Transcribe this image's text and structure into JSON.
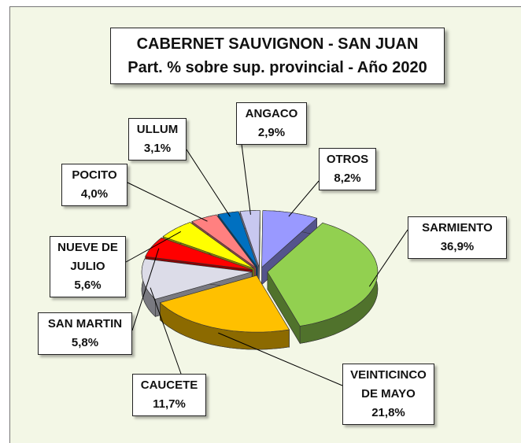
{
  "chart_data": {
    "type": "pie",
    "title": "CABERNET SAUVIGNON - SAN JUAN",
    "subtitle": "Part. % sobre sup. provincial  - Año 2020",
    "categories": [
      "SARMIENTO",
      "VEINTICINCO DE MAYO",
      "CAUCETE",
      "SAN MARTIN",
      "NUEVE DE JULIO",
      "POCITO",
      "ULLUM",
      "ANGACO",
      "OTROS"
    ],
    "values": [
      36.9,
      21.8,
      11.7,
      5.8,
      5.6,
      4.0,
      3.1,
      2.9,
      8.2
    ],
    "value_labels": [
      "36,9%",
      "21,8%",
      "11,7%",
      "5,8%",
      "5,6%",
      "4,0%",
      "3,1%",
      "2,9%",
      "8,2%"
    ],
    "colors": [
      "#92d050",
      "#ffc000",
      "#dcdce8",
      "#ff0000",
      "#ffff00",
      "#ff8080",
      "#0070c0",
      "#c8c8f0",
      "#9999ff"
    ]
  }
}
